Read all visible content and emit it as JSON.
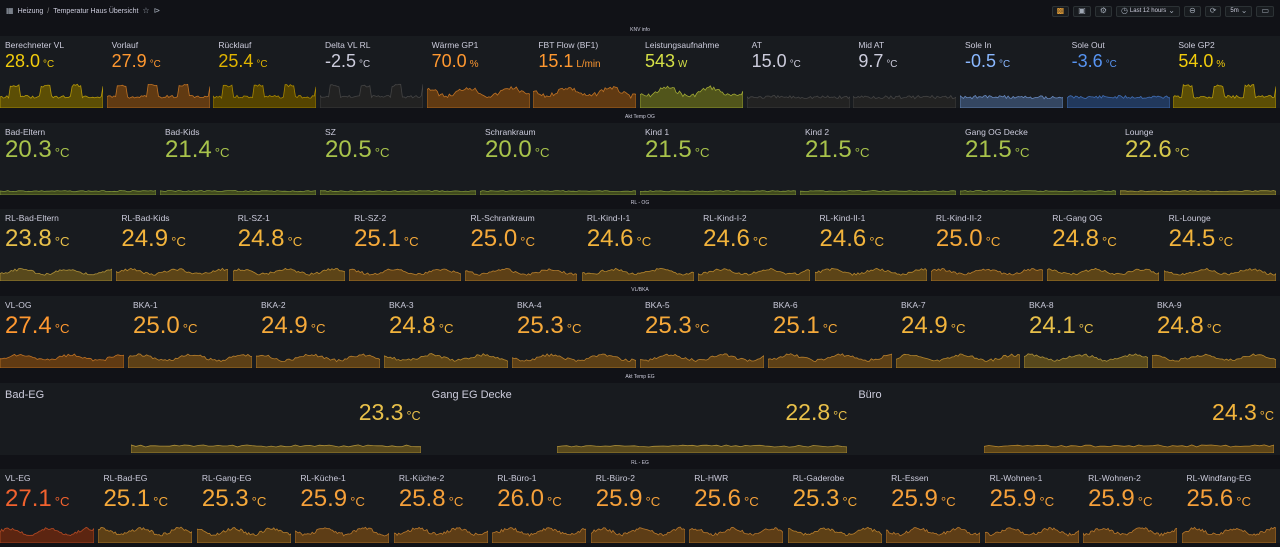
{
  "header": {
    "breadcrumb_folder": "Heizung",
    "breadcrumb_sep": "/",
    "breadcrumb_title": "Temperatur Haus Übersicht",
    "time_range": "Last 12 hours",
    "refresh_interval": "5m"
  },
  "colors": {
    "green": "#73bf69",
    "yellow": "#e8c04a",
    "orange": "#ff9830",
    "red_orange": "#f2622e",
    "blue": "#5794f2",
    "light_blue": "#8ab8ff",
    "gray": "#ccccdc",
    "band": "#181b1f"
  },
  "rows": [
    {
      "title": "KNV info",
      "panels": [
        {
          "title": "Berechneter VL",
          "value": "28.0",
          "unit": "°C",
          "color": "#f2cc0c"
        },
        {
          "title": "Vorlauf",
          "value": "27.9",
          "unit": "°C",
          "color": "#ff9830"
        },
        {
          "title": "Rücklauf",
          "value": "25.4",
          "unit": "°C",
          "color": "#e0b400"
        },
        {
          "title": "Delta VL RL",
          "value": "-2.5",
          "unit": "°C",
          "color": "#ccccdc"
        },
        {
          "title": "Wärme GP1",
          "value": "70.0",
          "unit": "%",
          "color": "#ff9830"
        },
        {
          "title": "FBT Flow (BF1)",
          "value": "15.1",
          "unit": "L/min",
          "color": "#ff9830"
        },
        {
          "title": "Leistungsaufnahme",
          "value": "543",
          "unit": "W",
          "color": "#d5e046"
        },
        {
          "title": "AT",
          "value": "15.0",
          "unit": "°C",
          "color": "#ccccdc"
        },
        {
          "title": "Mid AT",
          "value": "9.7",
          "unit": "°C",
          "color": "#ccccdc"
        },
        {
          "title": "Sole In",
          "value": "-0.5",
          "unit": "°C",
          "color": "#8ab8ff"
        },
        {
          "title": "Sole Out",
          "value": "-3.6",
          "unit": "°C",
          "color": "#5794f2"
        },
        {
          "title": "Sole GP2",
          "value": "54.0",
          "unit": "%",
          "color": "#f2cc0c"
        }
      ]
    },
    {
      "title": "Akt Temp OG",
      "panels": [
        {
          "title": "Bad-Eltern",
          "value": "20.3",
          "unit": "°C",
          "color": "#a8c34b"
        },
        {
          "title": "Bad-Kids",
          "value": "21.4",
          "unit": "°C",
          "color": "#a8c34b"
        },
        {
          "title": "SZ",
          "value": "20.5",
          "unit": "°C",
          "color": "#a8c34b"
        },
        {
          "title": "Schrankraum",
          "value": "20.0",
          "unit": "°C",
          "color": "#a8c34b"
        },
        {
          "title": "Kind 1",
          "value": "21.5",
          "unit": "°C",
          "color": "#a8c34b"
        },
        {
          "title": "Kind 2",
          "value": "21.5",
          "unit": "°C",
          "color": "#a8c34b"
        },
        {
          "title": "Gang OG Decke",
          "value": "21.5",
          "unit": "°C",
          "color": "#a8c34b"
        },
        {
          "title": "Lounge",
          "value": "22.6",
          "unit": "°C",
          "color": "#d5c84b"
        }
      ]
    },
    {
      "title": "RL - OG",
      "panels": [
        {
          "title": "RL-Bad-Eltern",
          "value": "23.8",
          "unit": "°C",
          "color": "#e8c04a"
        },
        {
          "title": "RL-Bad-Kids",
          "value": "24.9",
          "unit": "°C",
          "color": "#f2b43c"
        },
        {
          "title": "RL-SZ-1",
          "value": "24.8",
          "unit": "°C",
          "color": "#f2b43c"
        },
        {
          "title": "RL-SZ-2",
          "value": "25.1",
          "unit": "°C",
          "color": "#f5a93a"
        },
        {
          "title": "RL-Schrankraum",
          "value": "25.0",
          "unit": "°C",
          "color": "#f5a93a"
        },
        {
          "title": "RL-Kind-I-1",
          "value": "24.6",
          "unit": "°C",
          "color": "#f2b43c"
        },
        {
          "title": "RL-Kind-I-2",
          "value": "24.6",
          "unit": "°C",
          "color": "#f2b43c"
        },
        {
          "title": "RL-Kind-II-1",
          "value": "24.6",
          "unit": "°C",
          "color": "#f2b43c"
        },
        {
          "title": "RL-Kind-II-2",
          "value": "25.0",
          "unit": "°C",
          "color": "#f5a93a"
        },
        {
          "title": "RL-Gang OG",
          "value": "24.8",
          "unit": "°C",
          "color": "#f2b43c"
        },
        {
          "title": "RL-Lounge",
          "value": "24.5",
          "unit": "°C",
          "color": "#f2b43c"
        }
      ]
    },
    {
      "title": "VL/BKA",
      "panels": [
        {
          "title": "VL-OG",
          "value": "27.4",
          "unit": "°C",
          "color": "#ff9830"
        },
        {
          "title": "BKA-1",
          "value": "25.0",
          "unit": "°C",
          "color": "#f5a93a"
        },
        {
          "title": "BKA-2",
          "value": "24.9",
          "unit": "°C",
          "color": "#f5a93a"
        },
        {
          "title": "BKA-3",
          "value": "24.8",
          "unit": "°C",
          "color": "#f2b43c"
        },
        {
          "title": "BKA-4",
          "value": "25.3",
          "unit": "°C",
          "color": "#f5a93a"
        },
        {
          "title": "BKA-5",
          "value": "25.3",
          "unit": "°C",
          "color": "#f5a93a"
        },
        {
          "title": "BKA-6",
          "value": "25.1",
          "unit": "°C",
          "color": "#f5a93a"
        },
        {
          "title": "BKA-7",
          "value": "24.9",
          "unit": "°C",
          "color": "#f2b43c"
        },
        {
          "title": "BKA-8",
          "value": "24.1",
          "unit": "°C",
          "color": "#e8c04a"
        },
        {
          "title": "BKA-9",
          "value": "24.8",
          "unit": "°C",
          "color": "#f2b43c"
        }
      ]
    },
    {
      "title": "Akt Temp EG",
      "panels": [
        {
          "title": "Bad-EG",
          "value": "23.3",
          "unit": "°C",
          "color": "#e8c04a"
        },
        {
          "title": "Gang EG Decke",
          "value": "22.8",
          "unit": "°C",
          "color": "#e8c04a"
        },
        {
          "title": "Büro",
          "value": "24.3",
          "unit": "°C",
          "color": "#f2b43c"
        }
      ]
    },
    {
      "title": "RL - EG",
      "panels": [
        {
          "title": "VL-EG",
          "value": "27.1",
          "unit": "°C",
          "color": "#f2622e"
        },
        {
          "title": "RL-Bad-EG",
          "value": "25.1",
          "unit": "°C",
          "color": "#f5a93a"
        },
        {
          "title": "RL-Gang-EG",
          "value": "25.3",
          "unit": "°C",
          "color": "#f5a93a"
        },
        {
          "title": "RL-Küche-1",
          "value": "25.9",
          "unit": "°C",
          "color": "#f5a03a"
        },
        {
          "title": "RL-Küche-2",
          "value": "25.8",
          "unit": "°C",
          "color": "#f5a03a"
        },
        {
          "title": "RL-Büro-1",
          "value": "26.0",
          "unit": "°C",
          "color": "#f5a03a"
        },
        {
          "title": "RL-Büro-2",
          "value": "25.9",
          "unit": "°C",
          "color": "#f5a03a"
        },
        {
          "title": "RL-HWR",
          "value": "25.6",
          "unit": "°C",
          "color": "#f5a03a"
        },
        {
          "title": "RL-Gaderobe",
          "value": "25.3",
          "unit": "°C",
          "color": "#f5a93a"
        },
        {
          "title": "RL-Essen",
          "value": "25.9",
          "unit": "°C",
          "color": "#f5a03a"
        },
        {
          "title": "RL-Wohnen-1",
          "value": "25.9",
          "unit": "°C",
          "color": "#f5a03a"
        },
        {
          "title": "RL-Wohnen-2",
          "value": "25.9",
          "unit": "°C",
          "color": "#f5a03a"
        },
        {
          "title": "RL-Windfang-EG",
          "value": "25.6",
          "unit": "°C",
          "color": "#f5a03a"
        }
      ]
    }
  ]
}
